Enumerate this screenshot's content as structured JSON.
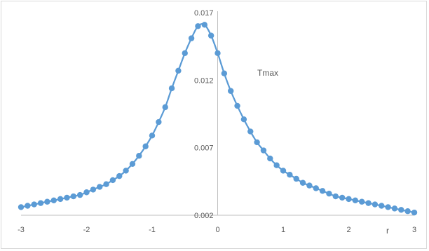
{
  "chart_data": {
    "type": "scatter",
    "title": "",
    "xlabel": "r",
    "ylabel": "",
    "series_label": "Tmax",
    "xlim": [
      -3,
      3
    ],
    "ylim": [
      0.002,
      0.017
    ],
    "x_ticks": [
      "-3",
      "-2",
      "-1",
      "0",
      "1",
      "2",
      "3"
    ],
    "y_ticks": [
      "0.002",
      "0.007",
      "0.012",
      "0.017"
    ],
    "grid": false,
    "color": "#5b9bd5",
    "series": [
      {
        "x": [
          -3.0,
          -2.9,
          -2.8,
          -2.7,
          -2.6,
          -2.5,
          -2.4,
          -2.3,
          -2.2,
          -2.1,
          -2.0,
          -1.9,
          -1.8,
          -1.7,
          -1.6,
          -1.5,
          -1.4,
          -1.3,
          -1.2,
          -1.1,
          -1.0,
          -0.9,
          -0.8,
          -0.7,
          -0.6,
          -0.5,
          -0.4,
          -0.3,
          -0.2,
          -0.1,
          0.0,
          0.1,
          0.2,
          0.3,
          0.4,
          0.5,
          0.6,
          0.7,
          0.8,
          0.9,
          1.0,
          1.1,
          1.2,
          1.3,
          1.4,
          1.5,
          1.6,
          1.7,
          1.8,
          1.9,
          2.0,
          2.1,
          2.2,
          2.3,
          2.4,
          2.5,
          2.6,
          2.7,
          2.8,
          2.9,
          3.0
        ],
        "y": [
          0.0026,
          0.0027,
          0.0028,
          0.0029,
          0.003,
          0.0031,
          0.0032,
          0.0033,
          0.0034,
          0.0035,
          0.0037,
          0.0039,
          0.0041,
          0.0043,
          0.0046,
          0.0049,
          0.0053,
          0.0058,
          0.0064,
          0.0071,
          0.0079,
          0.0089,
          0.01,
          0.0114,
          0.0127,
          0.014,
          0.0151,
          0.016,
          0.0161,
          0.0153,
          0.014,
          0.0125,
          0.0112,
          0.0101,
          0.0091,
          0.0082,
          0.0074,
          0.0068,
          0.0062,
          0.0057,
          0.0053,
          0.005,
          0.0047,
          0.0044,
          0.0042,
          0.004,
          0.0038,
          0.0036,
          0.0034,
          0.0033,
          0.0032,
          0.0031,
          0.003,
          0.0029,
          0.0028,
          0.0027,
          0.0026,
          0.0025,
          0.0024,
          0.0023,
          0.0022
        ]
      }
    ]
  }
}
